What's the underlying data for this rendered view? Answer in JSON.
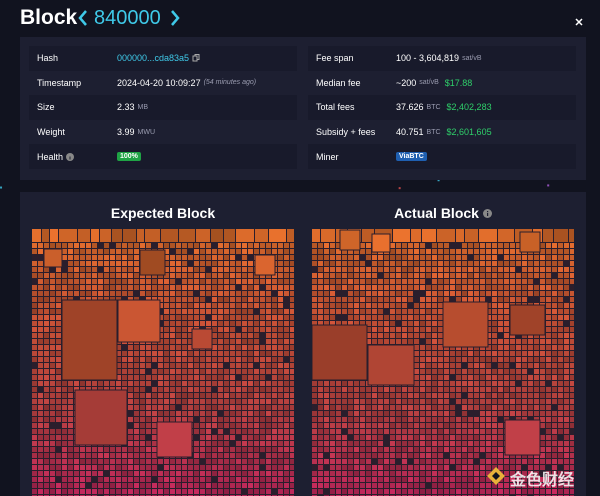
{
  "header": {
    "title": "Block",
    "block_height": "840000"
  },
  "details": {
    "left": [
      {
        "label": "Hash",
        "value": "000000...cda83a5"
      },
      {
        "label": "Timestamp",
        "value": "2024-04-20 10:09:27",
        "note": "(54 minutes ago)"
      },
      {
        "label": "Size",
        "value": "2.33",
        "unit": "MB"
      },
      {
        "label": "Weight",
        "value": "3.99",
        "unit": "MWU"
      },
      {
        "label": "Health",
        "badge": "100%"
      }
    ],
    "right": [
      {
        "label": "Fee span",
        "value": "100 - 3,604,819",
        "unit": "sat/vB"
      },
      {
        "label": "Median fee",
        "value": "~200",
        "unit": "sat/vB",
        "fiat": "$17.88"
      },
      {
        "label": "Total fees",
        "value": "37.626",
        "unit": "BTC",
        "fiat": "$2,402,283"
      },
      {
        "label": "Subsidy + fees",
        "value": "40.751",
        "unit": "BTC",
        "fiat": "$2,601,605"
      },
      {
        "label": "Miner",
        "badge": "ViaBTC"
      }
    ]
  },
  "panels": [
    {
      "title": "Expected Block"
    },
    {
      "title": "Actual Block"
    }
  ],
  "watermark": "金色财经"
}
